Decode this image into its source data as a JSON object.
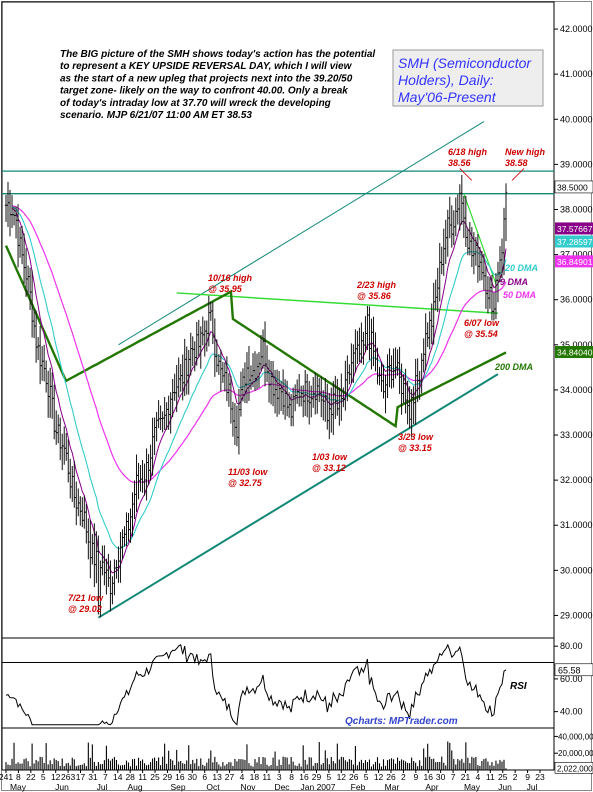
{
  "commentary": {
    "lines": [
      "The BIG picture of the SMH shows today's action has the potential",
      "to represent a KEY UPSIDE REVERSAL DAY, which I will view",
      "as the start of a new upleg that projects next into the 39.20/50",
      "target zone- likely on the way to confront 40.00. Only a break",
      "of today's intraday low at 37.70 will wreck the developing",
      "scenario.  MJP  6/21/07  11:00 AM ET  38.53"
    ]
  },
  "title_box": {
    "lines": [
      "SMH (Semiconductor",
      "Holders), Daily:",
      "May'06-Present"
    ]
  },
  "credit": "Qcharts: MPTrader.com",
  "colors": {
    "annotation": "#cc0000",
    "dma20": "#33cccc",
    "dma9": "#880088",
    "dma50": "#ee33ee",
    "dma200": "#227700",
    "trendline": "#118877",
    "price": "#111111",
    "title_text": "#3333ff",
    "title_bg": "#eeeeee"
  },
  "chart_data": [
    {
      "type": "candlestick",
      "ylim": [
        28.5,
        42.6
      ],
      "yticks": [
        "42.0000",
        "41.0000",
        "40.0000",
        "39.0000",
        "38.0000",
        "37.0000",
        "36.0000",
        "35.0000",
        "34.0000",
        "33.0000",
        "32.0000",
        "31.0000",
        "30.0000",
        "29.0000"
      ],
      "last_price_tags": [
        {
          "label": "38.5000",
          "value": 38.5,
          "bg": "#ffffff",
          "fg": "#000000"
        },
        {
          "label": "37.57667",
          "value": 37.58,
          "bg": "#880088",
          "fg": "#ffffff"
        },
        {
          "label": "37.28597",
          "value": 37.29,
          "bg": "#33cccc",
          "fg": "#ffffff"
        },
        {
          "label": "36.84901",
          "value": 36.85,
          "bg": "#ee33ee",
          "fg": "#ffffff"
        },
        {
          "label": "34.84040",
          "value": 34.84,
          "bg": "#227700",
          "fg": "#ffffff"
        }
      ],
      "anchors": [
        {
          "i": 0,
          "v": 38.1
        },
        {
          "i": 5,
          "v": 37.8
        },
        {
          "i": 15,
          "v": 35.2
        },
        {
          "i": 25,
          "v": 33.2
        },
        {
          "i": 35,
          "v": 31.6
        },
        {
          "i": 45,
          "v": 30.2
        },
        {
          "i": 52,
          "v": 29.8
        },
        {
          "i": 58,
          "v": 30.6
        },
        {
          "i": 65,
          "v": 31.8
        },
        {
          "i": 72,
          "v": 32.6
        },
        {
          "i": 80,
          "v": 33.6
        },
        {
          "i": 88,
          "v": 34.4
        },
        {
          "i": 96,
          "v": 35.1
        },
        {
          "i": 102,
          "v": 35.5
        },
        {
          "i": 108,
          "v": 34.2
        },
        {
          "i": 115,
          "v": 33.4
        },
        {
          "i": 120,
          "v": 34.4
        },
        {
          "i": 128,
          "v": 34.8
        },
        {
          "i": 135,
          "v": 34.0
        },
        {
          "i": 142,
          "v": 33.6
        },
        {
          "i": 150,
          "v": 34.1
        },
        {
          "i": 158,
          "v": 33.8
        },
        {
          "i": 165,
          "v": 33.5
        },
        {
          "i": 172,
          "v": 34.5
        },
        {
          "i": 180,
          "v": 35.2
        },
        {
          "i": 188,
          "v": 34.0
        },
        {
          "i": 194,
          "v": 34.6
        },
        {
          "i": 200,
          "v": 33.7
        },
        {
          "i": 205,
          "v": 34.3
        },
        {
          "i": 212,
          "v": 35.6
        },
        {
          "i": 220,
          "v": 37.6
        },
        {
          "i": 226,
          "v": 38.2
        },
        {
          "i": 232,
          "v": 37.1
        },
        {
          "i": 238,
          "v": 36.6
        },
        {
          "i": 243,
          "v": 36.0
        },
        {
          "i": 247,
          "v": 37.2
        },
        {
          "i": 249,
          "v": 38.3
        }
      ],
      "pivots": [
        {
          "i": 46,
          "v": 29.02
        },
        {
          "i": 102,
          "v": 35.95
        },
        {
          "i": 115,
          "v": 32.75
        },
        {
          "i": 160,
          "v": 33.12
        },
        {
          "i": 180,
          "v": 35.86
        },
        {
          "i": 201,
          "v": 33.15
        },
        {
          "i": 226,
          "v": 38.56
        },
        {
          "i": 242,
          "v": 35.54
        },
        {
          "i": 249,
          "v": 38.58
        }
      ],
      "annotations": [
        {
          "text": [
            "7/21 low",
            "@ 29.02"
          ]
        },
        {
          "text": [
            "10/16 high",
            "@ 35.95"
          ]
        },
        {
          "text": [
            "11/03 low",
            "@ 32.75"
          ]
        },
        {
          "text": [
            "1/03 low",
            "@ 33.12"
          ]
        },
        {
          "text": [
            "2/23 high",
            "@ 35.86"
          ]
        },
        {
          "text": [
            "3/23 low",
            "@ 33.15"
          ]
        },
        {
          "text": [
            "6/18 high",
            "38.56"
          ]
        },
        {
          "text": [
            "New high",
            "38.58"
          ]
        },
        {
          "text": [
            "6/07 low",
            "@ 35.54"
          ]
        }
      ],
      "ma_labels": [
        "20 DMA",
        "9 DMA",
        "50 DMA",
        "200 DMA"
      ]
    },
    {
      "type": "line",
      "name": "RSI",
      "ylim": [
        30,
        85
      ],
      "yticks": [
        "80.00",
        "60.00",
        "40.00"
      ],
      "last_value": "65.58",
      "label": "RSI",
      "guides": [
        70,
        30
      ]
    },
    {
      "type": "bar",
      "name": "Volume",
      "yticks": [
        "40,000,000",
        "20,000,000"
      ],
      "last_value": "2,022,000"
    }
  ],
  "x_axis": {
    "day_ticks": [
      "241",
      "8",
      "22",
      "5",
      "12",
      "263",
      "17",
      "31",
      "7",
      "14",
      "28",
      "11",
      "25",
      "29",
      "16",
      "30",
      "6",
      "13",
      "27",
      "4",
      "18",
      "11",
      "3",
      "8",
      "16",
      "29",
      "5",
      "12",
      "26",
      "5",
      "12",
      "26",
      "2",
      "9",
      "16",
      "30",
      "7",
      "21",
      "4",
      "11",
      "25",
      "2",
      "9",
      "23"
    ],
    "month_labels": [
      "May",
      "Jun",
      "Jul",
      "Aug",
      "Sep",
      "Oct",
      "Nov",
      "Dec",
      "Jan 2007",
      "Feb",
      "Mar",
      "Apr",
      "May",
      "Jun",
      "Jul"
    ]
  }
}
